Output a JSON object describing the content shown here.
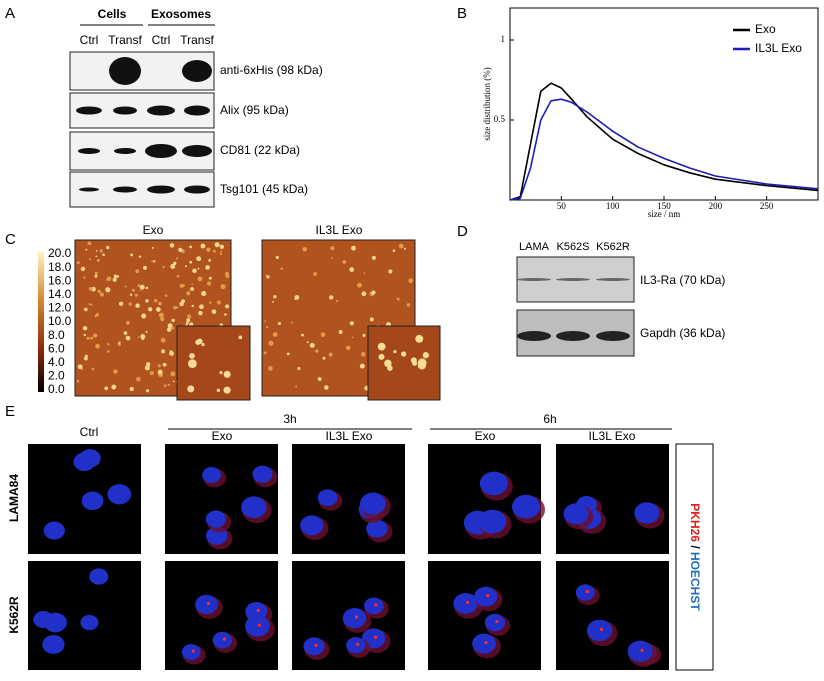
{
  "panels": {
    "a": {
      "label": "A",
      "groups": [
        "Cells",
        "Exosomes"
      ],
      "lanes": [
        "Ctrl",
        "Transf",
        "Ctrl",
        "Transf"
      ],
      "blots": [
        "anti-6xHis (98 kDa)",
        "Alix (95 kDa)",
        "CD81 (22 kDa)",
        "Tsg101 (45 kDa)"
      ]
    },
    "b": {
      "label": "B"
    },
    "c": {
      "label": "C",
      "images": [
        "Exo",
        "IL3L Exo"
      ],
      "scale": [
        "20.0 nm",
        "18.0",
        "16.0",
        "14.0",
        "12.0",
        "10.0",
        "8.0",
        "6.0",
        "4.0",
        "2.0",
        "0.0"
      ]
    },
    "d": {
      "label": "D",
      "lanes": [
        "LAMA",
        "K562S",
        "K562R"
      ],
      "blots": [
        "IL3-Ra (70 kDa)",
        "Gapdh (36 kDa)"
      ]
    },
    "e": {
      "label": "E",
      "control": "Ctrl",
      "times": [
        "3h",
        "6h"
      ],
      "conditions": [
        "Exo",
        "IL3L Exo",
        "Exo",
        "IL3L Exo"
      ],
      "rows": [
        "LAMA84",
        "K562R"
      ],
      "stain": [
        "PKH26",
        "/",
        "HOECHST"
      ]
    }
  },
  "chart_data": {
    "type": "line",
    "x_label": "size / nm",
    "y_label": "size distribution (%)",
    "x": [
      0,
      10,
      20,
      30,
      40,
      50,
      60,
      75,
      100,
      125,
      150,
      175,
      200,
      250,
      300
    ],
    "series": [
      {
        "name": "Exo",
        "color": "#000000",
        "values": [
          0,
          0.02,
          0.35,
          0.68,
          0.73,
          0.7,
          0.63,
          0.52,
          0.38,
          0.29,
          0.22,
          0.17,
          0.13,
          0.09,
          0.06
        ]
      },
      {
        "name": "IL3L Exo",
        "color": "#1f1fb4",
        "values": [
          0,
          0.01,
          0.2,
          0.5,
          0.62,
          0.63,
          0.61,
          0.55,
          0.43,
          0.33,
          0.26,
          0.2,
          0.15,
          0.1,
          0.07
        ]
      }
    ],
    "xlim": [
      0,
      300
    ],
    "ylim": [
      0,
      1.2
    ],
    "xticks": [
      50,
      100,
      150,
      200,
      250
    ],
    "yticks": [
      0.5,
      1
    ],
    "legend": "upper right"
  }
}
